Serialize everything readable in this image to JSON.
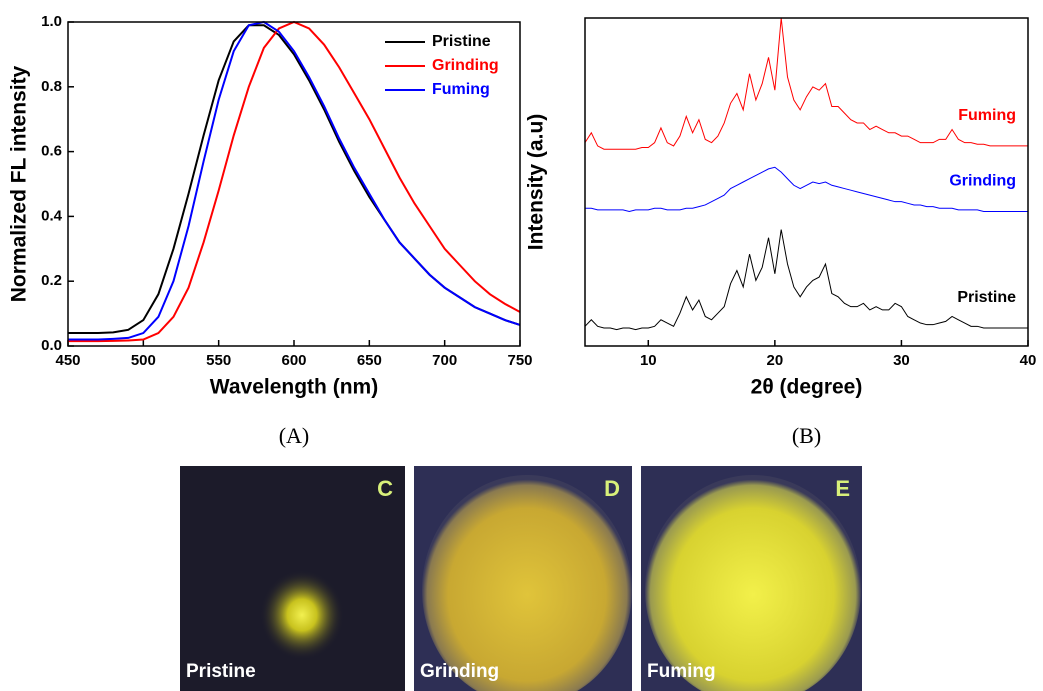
{
  "chart_data": [
    {
      "type": "line",
      "caption": "(A)",
      "xlabel": "Wavelength (nm)",
      "ylabel": "Normalized FL intensity",
      "x": [
        450,
        460,
        470,
        480,
        490,
        500,
        510,
        520,
        530,
        540,
        550,
        560,
        570,
        580,
        590,
        600,
        610,
        620,
        630,
        640,
        650,
        660,
        670,
        680,
        690,
        700,
        710,
        720,
        730,
        740,
        750
      ],
      "xlim": [
        450,
        750
      ],
      "xticks": [
        450,
        500,
        550,
        600,
        650,
        700,
        750
      ],
      "ylim": [
        0,
        1.0
      ],
      "yticks": [
        {
          "value": 0,
          "label": "0.0"
        },
        0.2,
        0.4,
        0.6,
        0.8,
        {
          "value": 1.0,
          "label": "1.0"
        }
      ],
      "legend": "upper right",
      "series": [
        {
          "name": "Pristine",
          "color": "#000000",
          "values": [
            0.04,
            0.04,
            0.04,
            0.042,
            0.05,
            0.08,
            0.16,
            0.3,
            0.47,
            0.65,
            0.82,
            0.94,
            0.99,
            0.99,
            0.96,
            0.9,
            0.82,
            0.73,
            0.63,
            0.54,
            0.46,
            0.39,
            0.32,
            0.27,
            0.22,
            0.18,
            0.15,
            0.12,
            0.1,
            0.08,
            0.065
          ]
        },
        {
          "name": "Grinding",
          "color": "#ff0000",
          "values": [
            0.015,
            0.015,
            0.015,
            0.016,
            0.017,
            0.02,
            0.04,
            0.09,
            0.18,
            0.32,
            0.48,
            0.65,
            0.8,
            0.92,
            0.98,
            1.0,
            0.98,
            0.93,
            0.86,
            0.78,
            0.7,
            0.61,
            0.52,
            0.44,
            0.37,
            0.3,
            0.25,
            0.2,
            0.16,
            0.13,
            0.105
          ]
        },
        {
          "name": "Fuming",
          "color": "#0000ff",
          "values": [
            0.02,
            0.02,
            0.02,
            0.022,
            0.025,
            0.04,
            0.09,
            0.2,
            0.37,
            0.57,
            0.76,
            0.91,
            0.99,
            1.0,
            0.97,
            0.91,
            0.83,
            0.74,
            0.64,
            0.55,
            0.47,
            0.39,
            0.32,
            0.27,
            0.22,
            0.18,
            0.15,
            0.12,
            0.1,
            0.08,
            0.065
          ]
        }
      ]
    },
    {
      "type": "line",
      "caption": "(B)",
      "xlabel": "2θ (degree)",
      "ylabel": "Intensity (a.u)",
      "x": [
        5,
        5.5,
        6,
        6.5,
        7,
        7.5,
        8,
        8.5,
        9,
        9.5,
        10,
        10.5,
        11,
        11.5,
        12,
        12.5,
        13,
        13.5,
        14,
        14.5,
        15,
        15.5,
        16,
        16.5,
        17,
        17.5,
        18,
        18.5,
        19,
        19.5,
        20,
        20.5,
        21,
        21.5,
        22,
        22.5,
        23,
        23.5,
        24,
        24.5,
        25,
        25.5,
        26,
        26.5,
        27,
        27.5,
        28,
        28.5,
        29,
        29.5,
        30,
        30.5,
        31,
        31.5,
        32,
        32.5,
        33,
        33.5,
        34,
        34.5,
        35,
        35.5,
        36,
        36.5,
        37,
        37.5,
        38,
        38.5,
        39,
        39.5,
        40
      ],
      "xlim": [
        5,
        40
      ],
      "xticks": [
        10,
        20,
        30,
        40
      ],
      "ylim": [
        0,
        100
      ],
      "legend": "inline",
      "series": [
        {
          "name": "Pristine",
          "color": "#000000",
          "values": [
            6,
            8,
            6,
            5.5,
            5.5,
            5,
            5.5,
            5.5,
            5,
            5.5,
            5.5,
            6,
            8,
            7,
            6,
            10,
            15,
            11,
            14,
            9,
            8,
            10,
            12,
            19,
            23,
            18,
            28,
            20,
            24,
            33,
            22,
            35.5,
            25,
            18,
            15,
            18,
            20,
            21,
            25,
            16,
            15,
            13,
            12,
            12,
            13,
            11,
            12,
            11,
            11,
            13,
            12,
            9,
            8,
            7,
            6.5,
            6.5,
            7,
            7.5,
            9,
            8,
            7,
            6,
            6,
            5.5,
            5.5,
            5.5,
            5.5,
            5.5,
            5.5,
            5.5,
            5.5
          ]
        },
        {
          "name": "Grinding",
          "color": "#0000ff",
          "values": [
            42,
            42,
            41.5,
            41.5,
            41.5,
            41.5,
            41.5,
            41,
            41.5,
            41.5,
            41.5,
            42,
            42,
            41.5,
            41.5,
            41.5,
            42,
            42,
            42.5,
            43,
            44,
            45,
            46,
            48,
            49,
            50,
            51,
            52,
            53,
            54,
            54.5,
            53,
            51,
            49,
            48,
            49,
            50,
            49.5,
            50,
            49,
            48.5,
            48,
            47.5,
            47,
            46.5,
            46,
            45.5,
            45,
            44.5,
            44,
            44,
            43.5,
            43,
            43,
            42.5,
            42.5,
            42,
            42,
            42,
            41.5,
            41.5,
            41.5,
            41.5,
            41,
            41,
            41,
            41,
            41,
            41,
            41,
            41
          ]
        },
        {
          "name": "Fuming",
          "color": "#ff0000",
          "values": [
            62,
            65,
            61,
            60,
            60,
            60,
            60,
            60,
            60,
            60.5,
            60.5,
            62,
            66.5,
            62,
            61,
            64,
            70,
            65,
            69,
            63,
            62,
            64,
            68,
            74,
            77,
            72,
            83,
            75,
            80,
            88,
            78,
            100,
            82,
            75,
            72,
            76,
            79,
            78,
            80,
            73,
            73,
            71,
            69,
            68,
            68,
            66,
            67,
            66,
            65,
            65,
            64,
            64,
            63,
            62,
            62,
            62,
            63,
            63,
            66,
            63,
            62,
            62,
            61.5,
            61.5,
            61,
            61,
            61,
            61,
            61,
            61,
            61
          ]
        }
      ]
    }
  ],
  "photos": [
    {
      "letter": "C",
      "label": "Pristine"
    },
    {
      "letter": "D",
      "label": "Grinding"
    },
    {
      "letter": "E",
      "label": "Fuming"
    }
  ]
}
